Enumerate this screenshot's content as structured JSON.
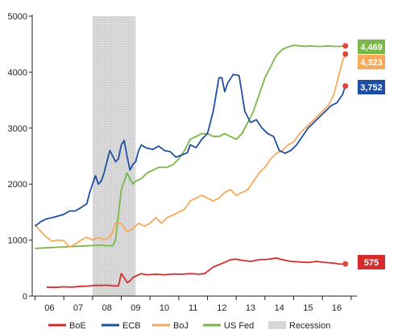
{
  "chart_data": {
    "type": "line",
    "x_unit": "two-digit year",
    "x_tick_labels": [
      "06",
      "07",
      "08",
      "09",
      "10",
      "11",
      "12",
      "13",
      "14",
      "15",
      "16"
    ],
    "xlim": [
      5.4,
      16.7
    ],
    "ylim": [
      0,
      5000
    ],
    "y_ticks": [
      0,
      1000,
      2000,
      3000,
      4000,
      5000
    ],
    "y_tick_labels": [
      "0",
      "1000",
      "2000",
      "3000",
      "4000",
      "5000"
    ],
    "grid": false,
    "legend_position": "bottom",
    "recession": {
      "start": 7.5,
      "end": 9.0,
      "label": "Recession",
      "color": "#cccccc"
    },
    "series": [
      {
        "name": "BoE",
        "color": "#d62b2b",
        "end_label": "575",
        "points": [
          [
            5.9,
            160
          ],
          [
            6.2,
            155
          ],
          [
            6.5,
            165
          ],
          [
            6.8,
            160
          ],
          [
            7.0,
            170
          ],
          [
            7.2,
            175
          ],
          [
            7.4,
            180
          ],
          [
            7.6,
            195
          ],
          [
            7.8,
            190
          ],
          [
            8.0,
            195
          ],
          [
            8.2,
            185
          ],
          [
            8.4,
            180
          ],
          [
            8.5,
            400
          ],
          [
            8.6,
            330
          ],
          [
            8.7,
            240
          ],
          [
            8.8,
            270
          ],
          [
            8.9,
            330
          ],
          [
            9.1,
            380
          ],
          [
            9.2,
            400
          ],
          [
            9.4,
            380
          ],
          [
            9.7,
            390
          ],
          [
            10.0,
            380
          ],
          [
            10.3,
            395
          ],
          [
            10.6,
            390
          ],
          [
            10.9,
            400
          ],
          [
            11.2,
            390
          ],
          [
            11.4,
            400
          ],
          [
            11.7,
            520
          ],
          [
            12.0,
            580
          ],
          [
            12.3,
            650
          ],
          [
            12.5,
            660
          ],
          [
            12.7,
            640
          ],
          [
            13.0,
            620
          ],
          [
            13.3,
            650
          ],
          [
            13.6,
            655
          ],
          [
            13.9,
            680
          ],
          [
            14.1,
            650
          ],
          [
            14.4,
            620
          ],
          [
            14.7,
            610
          ],
          [
            15.0,
            600
          ],
          [
            15.3,
            620
          ],
          [
            15.6,
            600
          ],
          [
            15.9,
            590
          ],
          [
            16.1,
            570
          ],
          [
            16.3,
            575
          ]
        ]
      },
      {
        "name": "ECB",
        "color": "#1f4fa3",
        "end_label": "3,752",
        "points": [
          [
            5.5,
            1250
          ],
          [
            5.7,
            1330
          ],
          [
            5.9,
            1380
          ],
          [
            6.1,
            1400
          ],
          [
            6.3,
            1430
          ],
          [
            6.5,
            1460
          ],
          [
            6.7,
            1520
          ],
          [
            6.9,
            1520
          ],
          [
            7.1,
            1580
          ],
          [
            7.3,
            1650
          ],
          [
            7.4,
            1850
          ],
          [
            7.6,
            2150
          ],
          [
            7.7,
            2000
          ],
          [
            7.8,
            2050
          ],
          [
            7.9,
            2200
          ],
          [
            8.0,
            2400
          ],
          [
            8.1,
            2600
          ],
          [
            8.2,
            2500
          ],
          [
            8.3,
            2400
          ],
          [
            8.4,
            2450
          ],
          [
            8.5,
            2700
          ],
          [
            8.6,
            2780
          ],
          [
            8.7,
            2500
          ],
          [
            8.8,
            2250
          ],
          [
            8.9,
            2350
          ],
          [
            9.0,
            2400
          ],
          [
            9.1,
            2600
          ],
          [
            9.2,
            2700
          ],
          [
            9.35,
            2650
          ],
          [
            9.6,
            2620
          ],
          [
            9.8,
            2680
          ],
          [
            10.0,
            2600
          ],
          [
            10.2,
            2580
          ],
          [
            10.4,
            2480
          ],
          [
            10.6,
            2520
          ],
          [
            10.8,
            2560
          ],
          [
            10.9,
            2700
          ],
          [
            11.1,
            2650
          ],
          [
            11.3,
            2800
          ],
          [
            11.5,
            2900
          ],
          [
            11.7,
            3300
          ],
          [
            11.8,
            3600
          ],
          [
            11.9,
            3900
          ],
          [
            12.0,
            3900
          ],
          [
            12.1,
            3650
          ],
          [
            12.2,
            3800
          ],
          [
            12.4,
            3960
          ],
          [
            12.6,
            3940
          ],
          [
            12.8,
            3300
          ],
          [
            13.0,
            3100
          ],
          [
            13.2,
            3150
          ],
          [
            13.4,
            3000
          ],
          [
            13.6,
            2900
          ],
          [
            13.8,
            2850
          ],
          [
            14.0,
            2600
          ],
          [
            14.2,
            2550
          ],
          [
            14.4,
            2600
          ],
          [
            14.6,
            2700
          ],
          [
            14.8,
            2850
          ],
          [
            15.0,
            3000
          ],
          [
            15.2,
            3100
          ],
          [
            15.4,
            3200
          ],
          [
            15.6,
            3300
          ],
          [
            15.8,
            3400
          ],
          [
            16.0,
            3450
          ],
          [
            16.2,
            3600
          ],
          [
            16.3,
            3752
          ]
        ]
      },
      {
        "name": "BoJ",
        "color": "#f7a95a",
        "end_label": "4,323",
        "points": [
          [
            5.5,
            1280
          ],
          [
            5.7,
            1150
          ],
          [
            5.9,
            1050
          ],
          [
            6.1,
            980
          ],
          [
            6.3,
            1000
          ],
          [
            6.5,
            990
          ],
          [
            6.7,
            880
          ],
          [
            6.9,
            930
          ],
          [
            7.1,
            1000
          ],
          [
            7.3,
            1050
          ],
          [
            7.5,
            1000
          ],
          [
            7.7,
            1050
          ],
          [
            7.9,
            1000
          ],
          [
            8.1,
            1050
          ],
          [
            8.2,
            1150
          ],
          [
            8.3,
            1300
          ],
          [
            8.5,
            1300
          ],
          [
            8.7,
            1150
          ],
          [
            8.9,
            1200
          ],
          [
            9.1,
            1300
          ],
          [
            9.3,
            1250
          ],
          [
            9.5,
            1300
          ],
          [
            9.7,
            1400
          ],
          [
            9.9,
            1300
          ],
          [
            10.1,
            1400
          ],
          [
            10.3,
            1450
          ],
          [
            10.5,
            1500
          ],
          [
            10.7,
            1550
          ],
          [
            10.9,
            1700
          ],
          [
            11.1,
            1750
          ],
          [
            11.3,
            1800
          ],
          [
            11.5,
            1750
          ],
          [
            11.7,
            1700
          ],
          [
            11.9,
            1750
          ],
          [
            12.1,
            1850
          ],
          [
            12.3,
            1900
          ],
          [
            12.5,
            1800
          ],
          [
            12.7,
            1850
          ],
          [
            12.9,
            1900
          ],
          [
            13.1,
            2050
          ],
          [
            13.3,
            2200
          ],
          [
            13.5,
            2300
          ],
          [
            13.7,
            2450
          ],
          [
            13.9,
            2550
          ],
          [
            14.1,
            2600
          ],
          [
            14.3,
            2700
          ],
          [
            14.5,
            2750
          ],
          [
            14.7,
            2900
          ],
          [
            14.9,
            3000
          ],
          [
            15.1,
            3100
          ],
          [
            15.3,
            3200
          ],
          [
            15.5,
            3300
          ],
          [
            15.7,
            3400
          ],
          [
            15.9,
            3600
          ],
          [
            16.0,
            3800
          ],
          [
            16.1,
            4000
          ],
          [
            16.2,
            4200
          ],
          [
            16.3,
            4323
          ]
        ]
      },
      {
        "name": "US Fed",
        "color": "#7ab648",
        "end_label": "4,469",
        "points": [
          [
            5.5,
            850
          ],
          [
            5.8,
            860
          ],
          [
            6.2,
            870
          ],
          [
            6.6,
            880
          ],
          [
            7.0,
            890
          ],
          [
            7.4,
            900
          ],
          [
            7.8,
            910
          ],
          [
            8.0,
            900
          ],
          [
            8.2,
            900
          ],
          [
            8.3,
            1000
          ],
          [
            8.5,
            1900
          ],
          [
            8.7,
            2200
          ],
          [
            8.8,
            2100
          ],
          [
            8.9,
            2000
          ],
          [
            9.0,
            2050
          ],
          [
            9.2,
            2100
          ],
          [
            9.4,
            2200
          ],
          [
            9.6,
            2250
          ],
          [
            9.8,
            2300
          ],
          [
            10.1,
            2300
          ],
          [
            10.3,
            2350
          ],
          [
            10.5,
            2450
          ],
          [
            10.7,
            2600
          ],
          [
            10.9,
            2800
          ],
          [
            11.1,
            2850
          ],
          [
            11.3,
            2900
          ],
          [
            11.5,
            2900
          ],
          [
            11.7,
            2850
          ],
          [
            11.9,
            2850
          ],
          [
            12.1,
            2900
          ],
          [
            12.3,
            2850
          ],
          [
            12.5,
            2800
          ],
          [
            12.7,
            2900
          ],
          [
            12.9,
            3100
          ],
          [
            13.1,
            3300
          ],
          [
            13.3,
            3600
          ],
          [
            13.5,
            3900
          ],
          [
            13.7,
            4100
          ],
          [
            13.9,
            4300
          ],
          [
            14.1,
            4400
          ],
          [
            14.3,
            4450
          ],
          [
            14.5,
            4480
          ],
          [
            14.7,
            4470
          ],
          [
            14.9,
            4460
          ],
          [
            15.1,
            4470
          ],
          [
            15.3,
            4460
          ],
          [
            15.5,
            4460
          ],
          [
            15.7,
            4470
          ],
          [
            15.9,
            4460
          ],
          [
            16.1,
            4460
          ],
          [
            16.3,
            4469
          ]
        ]
      }
    ]
  }
}
